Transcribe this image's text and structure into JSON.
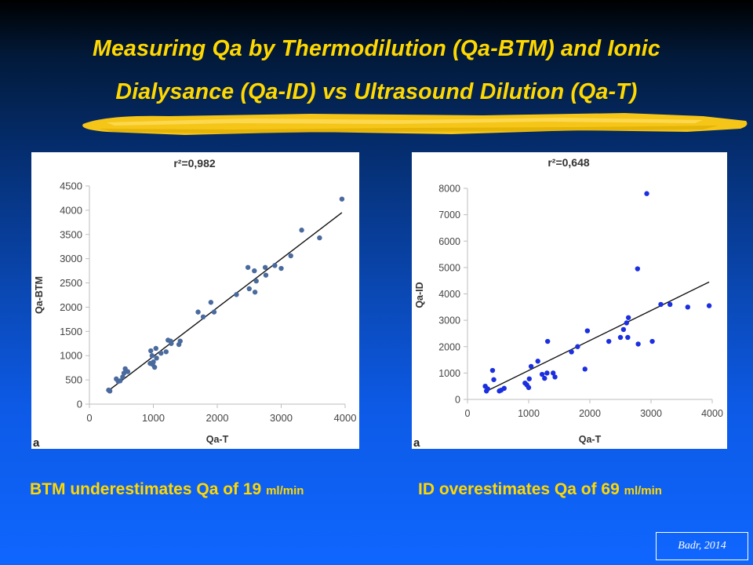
{
  "slide": {
    "title_line1": "Measuring Qa by Thermodilution (Qa-BTM) and Ionic",
    "title_line2": "Dialysance (Qa-ID) vs Ultrasound Dilution (Qa-T)",
    "caption_left_main": "BTM underestimates Qa of 19 ",
    "caption_left_unit": "ml/min",
    "caption_right_main": "ID overestimates Qa of 69 ",
    "caption_right_unit": "ml/min",
    "credit": "Badr, 2014",
    "colors": {
      "title": "#ffd800",
      "brush": "#f5c518"
    }
  },
  "chart_data": [
    {
      "type": "scatter",
      "title": "r²=0,982",
      "panel_label": "a",
      "xlabel": "Qa-T",
      "ylabel": "Qa-BTM",
      "xlim": [
        0,
        4000
      ],
      "ylim": [
        0,
        4500
      ],
      "xticks": [
        0,
        1000,
        2000,
        3000,
        4000
      ],
      "yticks": [
        0,
        500,
        1000,
        1500,
        2000,
        2500,
        3000,
        3500,
        4000,
        4500
      ],
      "grid": false,
      "point_color": "#4a6a9e",
      "x": [
        300,
        320,
        420,
        450,
        480,
        520,
        540,
        560,
        600,
        950,
        960,
        980,
        990,
        1000,
        1020,
        1040,
        1050,
        1120,
        1200,
        1230,
        1270,
        1280,
        1400,
        1420,
        1700,
        1780,
        1900,
        1950,
        2300,
        2480,
        2500,
        2580,
        2590,
        2610,
        2750,
        2760,
        2900,
        3000,
        3150,
        3320,
        3600,
        3950
      ],
      "y": [
        290,
        270,
        520,
        470,
        480,
        560,
        640,
        730,
        670,
        840,
        1100,
        1000,
        820,
        870,
        760,
        1150,
        950,
        1050,
        1080,
        1320,
        1300,
        1250,
        1230,
        1300,
        1900,
        1800,
        2100,
        1900,
        2260,
        2820,
        2380,
        2750,
        2310,
        2540,
        2820,
        2660,
        2860,
        2800,
        3060,
        3590,
        3430,
        4230
      ],
      "trendline": {
        "x": [
          300,
          3950
        ],
        "y": [
          280,
          3950
        ]
      }
    },
    {
      "type": "scatter",
      "title": "r²=0,648",
      "panel_label": "a",
      "xlabel": "Qa-T",
      "ylabel": "Qa-ID",
      "xlim": [
        0,
        4000
      ],
      "ylim": [
        0,
        8000
      ],
      "xticks": [
        0,
        1000,
        2000,
        3000,
        4000
      ],
      "yticks": [
        0,
        1000,
        2000,
        3000,
        4000,
        5000,
        6000,
        7000,
        8000
      ],
      "grid": false,
      "point_color": "#1b2fe0",
      "x": [
        290,
        310,
        330,
        410,
        430,
        520,
        550,
        600,
        940,
        970,
        1000,
        1010,
        1040,
        1150,
        1220,
        1260,
        1300,
        1310,
        1400,
        1430,
        1700,
        1800,
        1920,
        1960,
        2310,
        2500,
        2550,
        2600,
        2620,
        2630,
        2780,
        2790,
        2930,
        3020,
        3160,
        3310,
        3600,
        3950
      ],
      "y": [
        500,
        320,
        400,
        1100,
        750,
        320,
        350,
        420,
        620,
        550,
        450,
        780,
        1250,
        1450,
        950,
        800,
        1000,
        2200,
        1000,
        850,
        1800,
        2000,
        1150,
        2600,
        2200,
        2350,
        2650,
        2900,
        2350,
        3100,
        4950,
        2100,
        7800,
        2200,
        3600,
        3600,
        3500,
        3550
      ],
      "trendline": {
        "x": [
          300,
          3950
        ],
        "y": [
          300,
          4450
        ]
      }
    }
  ]
}
